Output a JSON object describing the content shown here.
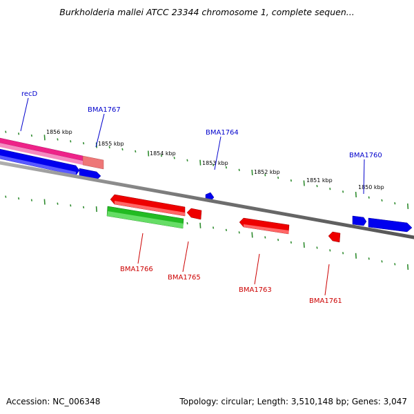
{
  "title": "Burkholderia mallei ATCC 23344 chromosome 1, complete sequen...",
  "footer": {
    "accession": "Accession: NC_006348",
    "topology": "Topology: circular; Length: 3,510,148 bp; Genes: 3,047"
  },
  "colors": {
    "backbone": "#808080",
    "tick": "#2e8b2e",
    "forward_label": "#0000cc",
    "reverse_label": "#cc0000",
    "blue_gene": "#0000ee",
    "red_gene": "#ee0000",
    "green_gene": "#22bb22",
    "pink_gene": "#ee2288",
    "salmon_gene": "#ee7777"
  },
  "kbp_labels": [
    {
      "kbp": 1856,
      "text": "1856 kbp"
    },
    {
      "kbp": 1855,
      "text": "1855 kbp"
    },
    {
      "kbp": 1854,
      "text": "1854 kbp"
    },
    {
      "kbp": 1853,
      "text": "1853 kbp"
    },
    {
      "kbp": 1852,
      "text": "1852 kbp"
    },
    {
      "kbp": 1851,
      "text": "1851 kbp"
    },
    {
      "kbp": 1850,
      "text": "1850 kbp"
    }
  ],
  "gene_labels": {
    "recD": "recD",
    "BMA1767": "BMA1767",
    "BMA1764": "BMA1764",
    "BMA1760": "BMA1760",
    "BMA1766": "BMA1766",
    "BMA1765": "BMA1765",
    "BMA1763": "BMA1763",
    "BMA1761": "BMA1761"
  }
}
